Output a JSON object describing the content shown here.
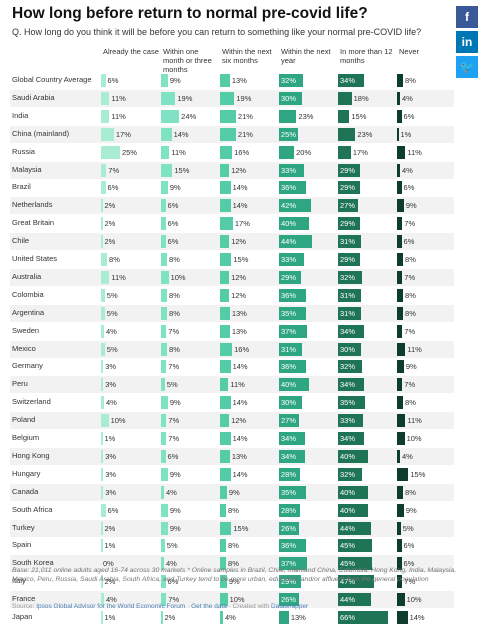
{
  "title": "How long before return to normal pre-covid life?",
  "subtitle": "Q. How long do you think it will be before you can return to something like your normal pre-COVID life?",
  "social": [
    {
      "name": "facebook-icon",
      "glyph": "f",
      "color": "#3b5998"
    },
    {
      "name": "linkedin-icon",
      "glyph": "in",
      "color": "#0077b5"
    },
    {
      "name": "twitter-icon",
      "glyph": "🐦",
      "color": "#1da1f2"
    }
  ],
  "colors": [
    "#a8ecd2",
    "#7fe2c2",
    "#55cca8",
    "#2fa682",
    "#1f7456",
    "#0e3d2b"
  ],
  "footer": {
    "base": "Base: 21,011 online adults aged 16-74 across 30 markets * Online samples in Brazil, Chile, mainland China, Columbia, Hong Kong, India, Malaysia, Mexico, Peru, Russia, Saudi Arabia, South Africa, and Turkey tend to be more urban, educated, and/or affluent than the general population",
    "source_prefix": "Source: ",
    "source_link": "Ipsos Global Advisor for the World Economic Forum",
    "sep1": " · ",
    "get_data": "Get the data",
    "sep2": " · Created with ",
    "datawrapper": "Datawrapper"
  },
  "chart_data": {
    "type": "table",
    "columns": [
      "Already the case",
      "Within one month or three months",
      "Within the next six months",
      "Within the next year",
      "In more than 12 months",
      "Never"
    ],
    "rows": [
      {
        "country": "Global Country Average",
        "values": [
          6,
          9,
          13,
          32,
          34,
          8
        ]
      },
      {
        "country": "Saudi Arabia",
        "values": [
          11,
          19,
          19,
          30,
          18,
          4
        ]
      },
      {
        "country": "India",
        "values": [
          11,
          24,
          21,
          23,
          15,
          6
        ]
      },
      {
        "country": "China (mainland)",
        "values": [
          17,
          14,
          21,
          25,
          23,
          1
        ]
      },
      {
        "country": "Russia",
        "values": [
          25,
          11,
          16,
          20,
          17,
          11
        ]
      },
      {
        "country": "Malaysia",
        "values": [
          7,
          15,
          12,
          33,
          29,
          4
        ]
      },
      {
        "country": "Brazil",
        "values": [
          6,
          9,
          14,
          36,
          29,
          6
        ]
      },
      {
        "country": "Netherlands",
        "values": [
          2,
          6,
          14,
          42,
          27,
          9
        ]
      },
      {
        "country": "Great Britain",
        "values": [
          2,
          6,
          17,
          40,
          29,
          7
        ]
      },
      {
        "country": "Chile",
        "values": [
          2,
          6,
          12,
          44,
          31,
          6
        ]
      },
      {
        "country": "United States",
        "values": [
          8,
          8,
          15,
          33,
          29,
          8
        ]
      },
      {
        "country": "Australia",
        "values": [
          11,
          10,
          12,
          29,
          32,
          7
        ]
      },
      {
        "country": "Colombia",
        "values": [
          5,
          8,
          12,
          36,
          31,
          8
        ]
      },
      {
        "country": "Argentina",
        "values": [
          5,
          8,
          13,
          35,
          31,
          8
        ]
      },
      {
        "country": "Sweden",
        "values": [
          4,
          7,
          13,
          37,
          34,
          7
        ]
      },
      {
        "country": "Mexico",
        "values": [
          5,
          8,
          16,
          31,
          30,
          11
        ]
      },
      {
        "country": "Germany",
        "values": [
          3,
          7,
          14,
          36,
          32,
          9
        ]
      },
      {
        "country": "Peru",
        "values": [
          3,
          5,
          11,
          40,
          34,
          7
        ]
      },
      {
        "country": "Switzerland",
        "values": [
          4,
          9,
          14,
          30,
          35,
          8
        ]
      },
      {
        "country": "Poland",
        "values": [
          10,
          7,
          12,
          27,
          33,
          11
        ]
      },
      {
        "country": "Belgium",
        "values": [
          1,
          7,
          14,
          34,
          34,
          10
        ]
      },
      {
        "country": "Hong Kong",
        "values": [
          3,
          6,
          13,
          34,
          40,
          4
        ]
      },
      {
        "country": "Hungary",
        "values": [
          3,
          9,
          14,
          28,
          32,
          15
        ]
      },
      {
        "country": "Canada",
        "values": [
          3,
          4,
          9,
          35,
          40,
          8
        ]
      },
      {
        "country": "South Africa",
        "values": [
          6,
          9,
          8,
          28,
          40,
          9
        ]
      },
      {
        "country": "Turkey",
        "values": [
          2,
          9,
          15,
          26,
          44,
          5
        ]
      },
      {
        "country": "Spain",
        "values": [
          1,
          5,
          8,
          36,
          45,
          6
        ]
      },
      {
        "country": "South Korea",
        "values": [
          0,
          4,
          8,
          37,
          45,
          6
        ]
      },
      {
        "country": "Italy",
        "values": [
          2,
          6,
          9,
          29,
          47,
          7
        ]
      },
      {
        "country": "France",
        "values": [
          4,
          7,
          10,
          26,
          44,
          10
        ]
      },
      {
        "country": "Japan",
        "values": [
          1,
          2,
          4,
          13,
          66,
          14
        ]
      }
    ]
  }
}
